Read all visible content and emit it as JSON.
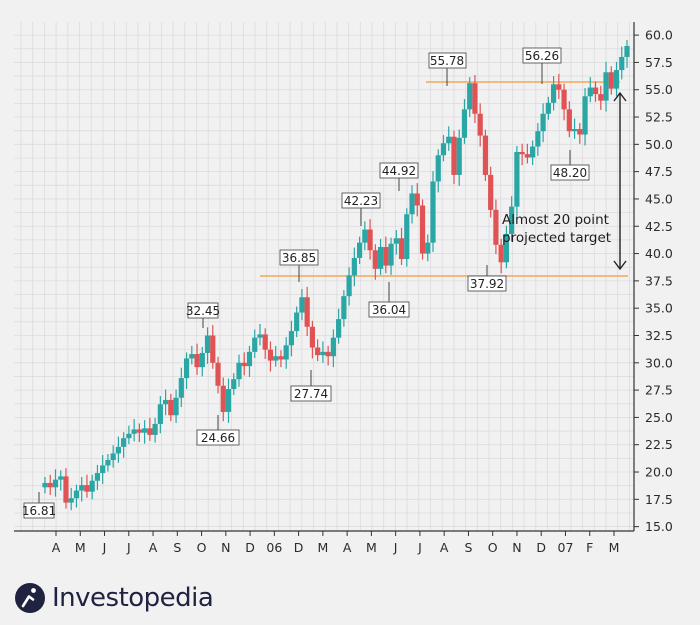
{
  "chart_data": {
    "type": "candlestick",
    "x_tick_labels": [
      "A",
      "M",
      "J",
      "J",
      "A",
      "S",
      "O",
      "N",
      "D",
      "06",
      "D",
      "M",
      "A",
      "M",
      "J",
      "J",
      "A",
      "S",
      "O",
      "N",
      "D",
      "07",
      "F",
      "M"
    ],
    "y_ticks": [
      15.0,
      17.5,
      20.0,
      22.5,
      25.0,
      27.5,
      30.0,
      32.5,
      35.0,
      37.5,
      40.0,
      42.5,
      45.0,
      47.5,
      50.0,
      52.5,
      55.0,
      57.5,
      60.0
    ],
    "y_tick_labels": [
      "15.0",
      "17.5",
      "20.0",
      "22.5",
      "25.0",
      "27.5",
      "30.0",
      "32.5",
      "35.0",
      "37.5",
      "40.0",
      "42.5",
      "45.0",
      "47.5",
      "50.0",
      "52.5",
      "55.0",
      "57.5",
      "60.0"
    ],
    "ylim": [
      14.6,
      61.2
    ],
    "up_color": "#2aa6a5",
    "down_color": "#e05253",
    "level_color": "#f2a85a",
    "close": [
      19.0,
      18.6,
      19.3,
      19.6,
      17.2,
      17.6,
      18.3,
      18.8,
      18.2,
      19.2,
      19.9,
      20.6,
      21.1,
      21.7,
      22.3,
      23.1,
      23.5,
      23.9,
      23.6,
      24.0,
      23.4,
      24.4,
      26.2,
      26.6,
      25.2,
      26.8,
      28.6,
      30.4,
      30.8,
      29.6,
      30.9,
      32.5,
      30.0,
      27.9,
      25.5,
      27.6,
      28.5,
      30.0,
      29.7,
      31.0,
      32.3,
      32.6,
      31.2,
      30.2,
      30.6,
      30.3,
      31.6,
      32.9,
      34.6,
      36.0,
      33.3,
      31.4,
      30.7,
      31.0,
      30.6,
      32.3,
      34.0,
      36.1,
      38.0,
      39.6,
      41.0,
      42.2,
      40.3,
      38.6,
      40.6,
      38.9,
      40.9,
      41.4,
      39.5,
      43.6,
      45.5,
      44.4,
      40.0,
      41.0,
      46.6,
      49.0,
      50.1,
      50.7,
      47.2,
      50.6,
      53.2,
      55.6,
      52.8,
      50.8,
      47.2,
      44.0,
      40.8,
      39.2,
      41.8,
      44.3,
      49.3,
      49.1,
      48.8,
      49.8,
      51.2,
      52.8,
      53.8,
      55.5,
      55.0,
      53.2,
      51.2,
      51.4,
      50.9,
      54.4,
      55.2,
      54.6,
      54.0,
      56.6,
      55.1,
      56.8,
      58.0,
      59.0
    ]
  },
  "annotations": {
    "low_start": "16.81",
    "high_1": "32.45",
    "low_1": "24.66",
    "high_2": "36.85",
    "low_2": "27.74",
    "high_3": "42.23",
    "low_3": "36.04",
    "high_4": "44.92",
    "high_5": "55.78",
    "low_4": "37.92",
    "high_6": "56.26",
    "low_5": "48.20"
  },
  "note": {
    "line1": "Almost 20 point",
    "line2": "projected target"
  },
  "brand": {
    "name": "Investopedia",
    "colors": {
      "icon": "#1f2340"
    }
  }
}
